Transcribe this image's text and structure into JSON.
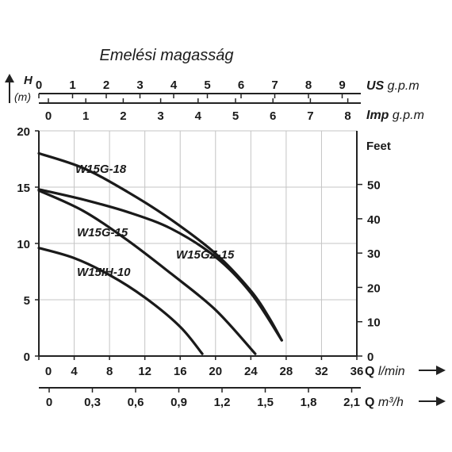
{
  "chart_data": {
    "type": "line",
    "title": "Emelési magasság",
    "ylabel_symbol": "H",
    "ylabel_unit": "(m)",
    "ylim": [
      0,
      20
    ],
    "y_ticks": [
      "0",
      "5",
      "10",
      "15",
      "20"
    ],
    "x_primary": {
      "label_symbol": "Q",
      "label_unit": "l/min",
      "xlim": [
        0,
        36
      ],
      "ticks": [
        "0",
        "4",
        "8",
        "12",
        "16",
        "20",
        "24",
        "28",
        "32",
        "36"
      ]
    },
    "x_bottom": {
      "label_symbol": "Q",
      "label_unit": "m³/h",
      "ticks": [
        "0",
        "0,3",
        "0,6",
        "0,9",
        "1,2",
        "1,5",
        "1,8",
        "2,1"
      ]
    },
    "x_top_us": {
      "label_bold": "US",
      "label_unit": "g.p.m",
      "ticks": [
        "0",
        "1",
        "2",
        "3",
        "4",
        "5",
        "6",
        "7",
        "8",
        "9"
      ]
    },
    "x_top_imp": {
      "label_bold": "Imp",
      "label_unit": "g.p.m",
      "ticks": [
        "0",
        "1",
        "2",
        "3",
        "4",
        "5",
        "6",
        "7",
        "8"
      ]
    },
    "y_right": {
      "label": "Feet",
      "ticks": [
        "0",
        "10",
        "20",
        "30",
        "40",
        "50"
      ]
    },
    "grid": true,
    "series": [
      {
        "name": "W15G-18",
        "x": [
          0,
          5,
          10,
          15,
          20,
          24,
          26,
          27.5
        ],
        "y": [
          18,
          16.7,
          14.6,
          12.1,
          9.1,
          5.8,
          3.5,
          1.4
        ]
      },
      {
        "name": "W15GZ-15",
        "x": [
          0,
          5,
          10,
          15,
          20,
          24,
          27.5
        ],
        "y": [
          14.8,
          13.9,
          12.8,
          11.3,
          8.8,
          5.6,
          1.4
        ]
      },
      {
        "name": "W15G-15",
        "x": [
          0,
          5,
          10,
          15,
          20,
          24.5
        ],
        "y": [
          14.7,
          12.9,
          10.3,
          7.3,
          4.1,
          0.2
        ]
      },
      {
        "name": "W15IH-10",
        "x": [
          0,
          4,
          8,
          12,
          16,
          18.5
        ],
        "y": [
          9.6,
          8.7,
          7.2,
          5.2,
          2.6,
          0.2
        ]
      }
    ]
  }
}
